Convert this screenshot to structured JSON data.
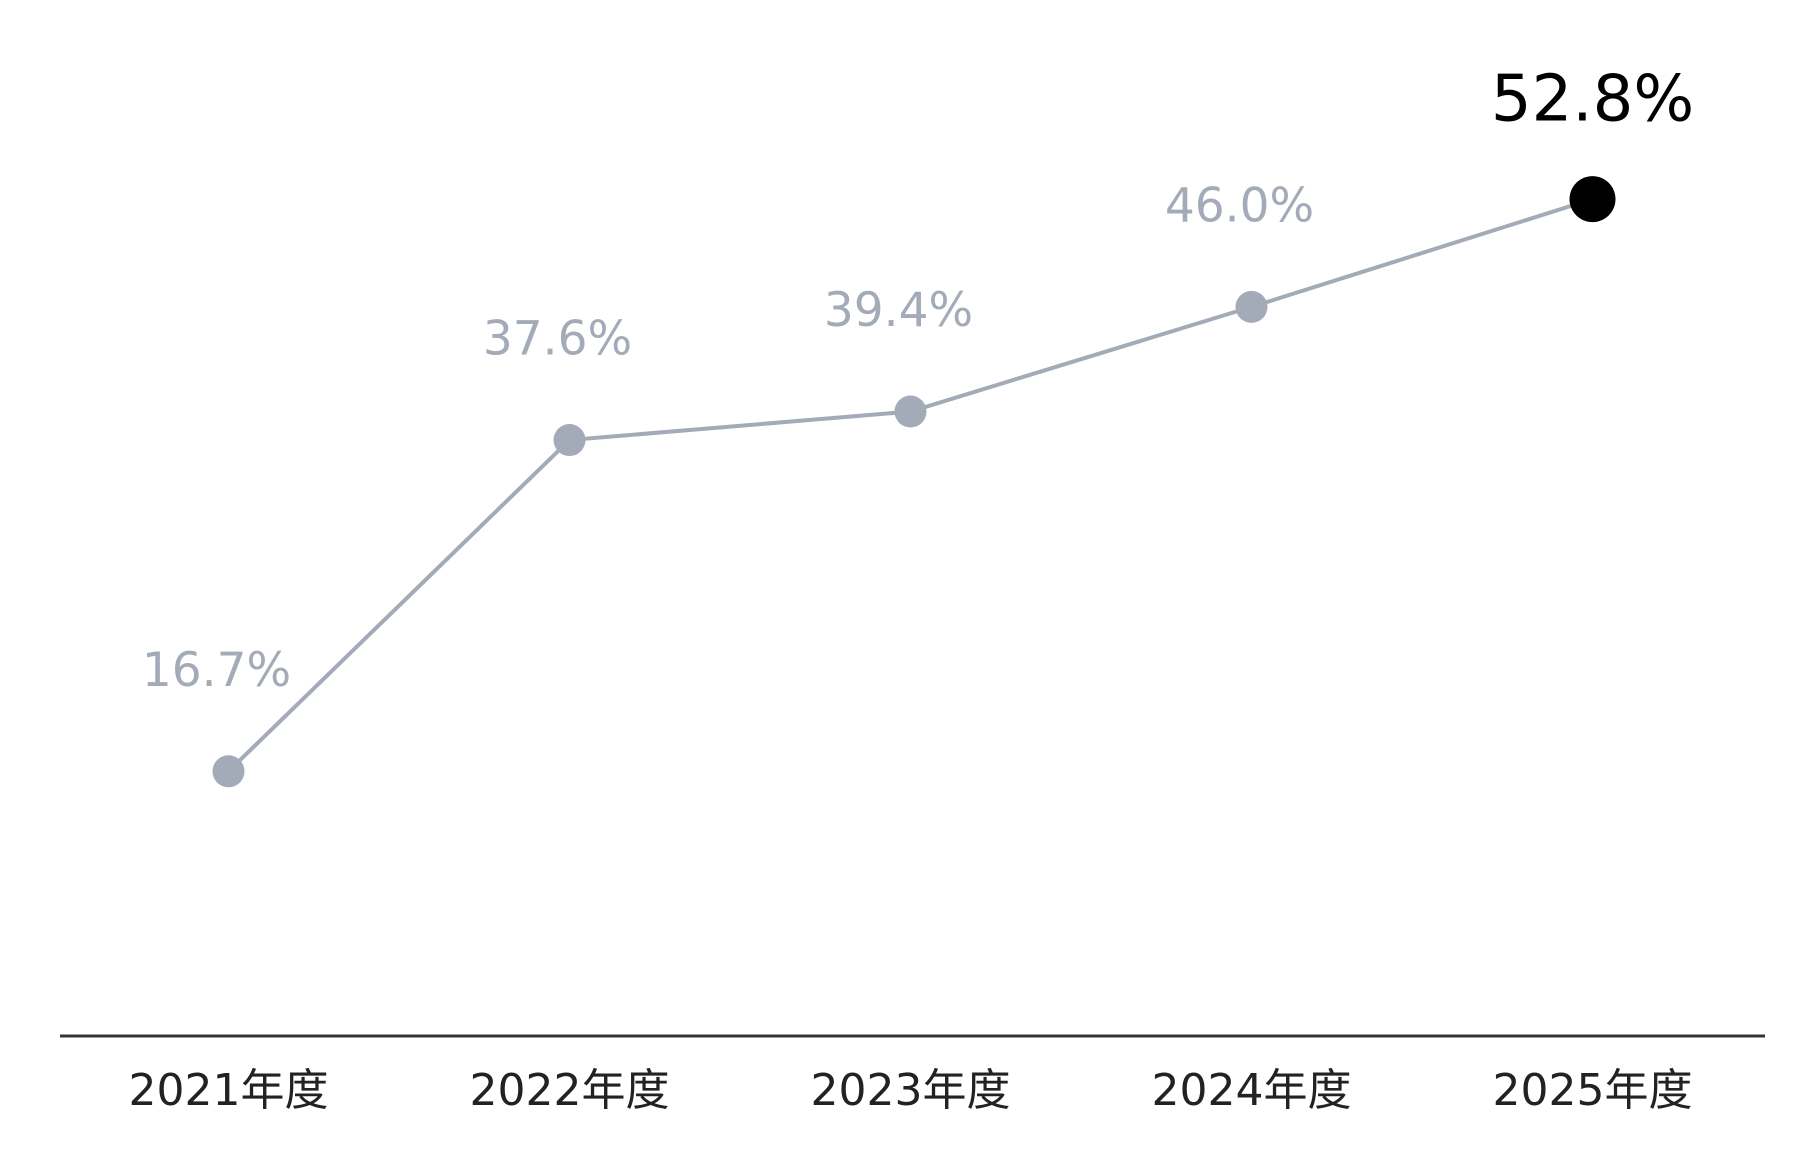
{
  "chart_data": {
    "type": "line",
    "categories": [
      "2021年度",
      "2022年度",
      "2023年度",
      "2024年度",
      "2025年度"
    ],
    "values": [
      16.7,
      37.6,
      39.4,
      46.0,
      52.8
    ],
    "value_labels": [
      "16.7%",
      "37.6%",
      "39.4%",
      "46.0%",
      "52.8%"
    ],
    "color": "#a3abb9",
    "point_colors": [
      "#a3abb9",
      "#a3abb9",
      "#a3abb9",
      "#a3abb9",
      "#000000"
    ],
    "ylim": [
      0,
      60
    ]
  }
}
